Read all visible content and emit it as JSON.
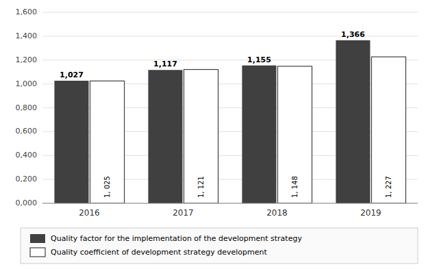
{
  "chart_data": {
    "type": "bar",
    "categories": [
      "2016",
      "2017",
      "2018",
      "2019"
    ],
    "series": [
      {
        "name": "Quality factor for the implementation of the development strategy",
        "color": "#404040",
        "values": [
          1.027,
          1.117,
          1.155,
          1.366
        ],
        "value_labels": [
          "1,027",
          "1,117",
          "1,155",
          "1,366"
        ]
      },
      {
        "name": "Quality coefficient of development strategy development",
        "color": "#ffffff",
        "values": [
          1.025,
          1.121,
          1.148,
          1.227
        ],
        "value_labels": [
          "1, 025",
          "1, 121",
          "1, 148",
          "1, 227"
        ]
      }
    ],
    "ylim": [
      0,
      1.6
    ],
    "yticks": [
      {
        "value": 0.0,
        "label": "0,000"
      },
      {
        "value": 0.2,
        "label": "0,200"
      },
      {
        "value": 0.4,
        "label": "0,400"
      },
      {
        "value": 0.6,
        "label": "0,600"
      },
      {
        "value": 0.8,
        "label": "0,800"
      },
      {
        "value": 1.0,
        "label": "1,000"
      },
      {
        "value": 1.2,
        "label": "1,200"
      },
      {
        "value": 1.4,
        "label": "1,400"
      },
      {
        "value": 1.6,
        "label": "1,600"
      }
    ],
    "grid": true,
    "data_labels": true,
    "legend": "bottom"
  }
}
